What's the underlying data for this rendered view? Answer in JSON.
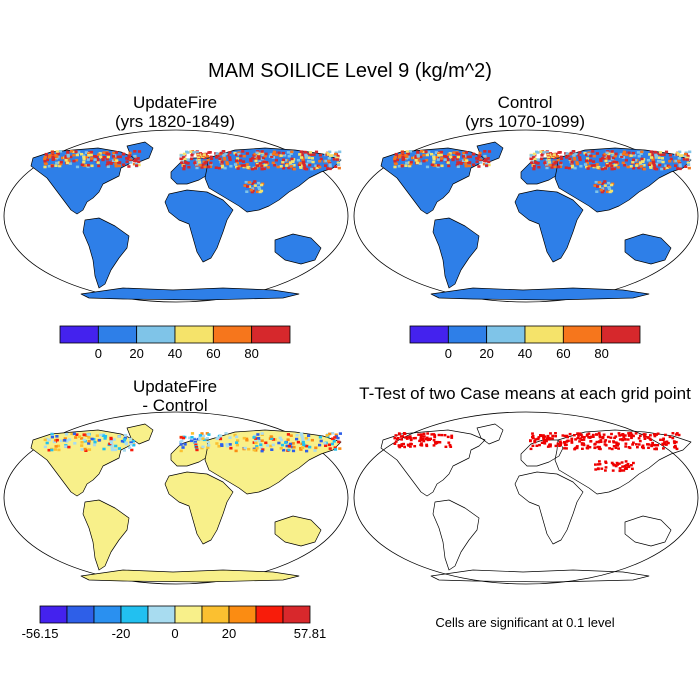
{
  "figure": {
    "title": "MAM SOILICE Level 9 (kg/m^2)"
  },
  "panels": [
    {
      "title_line1": "UpdateFire",
      "title_line2": "(yrs 1820-1849)"
    },
    {
      "title_line1": "Control",
      "title_line2": "(yrs 1070-1099)"
    },
    {
      "title_line1": "UpdateFire",
      "title_line2": "- Control"
    },
    {
      "title_line1": "T-Test of two Case means at each grid point"
    }
  ],
  "footnote": "Cells are significant at 0.1 level",
  "colorbars": {
    "absolute": {
      "colors": [
        "#4422ee",
        "#2e7fe8",
        "#7fc4e8",
        "#f5e36a",
        "#f6761c",
        "#d6282c"
      ],
      "tick_labels": [
        "0",
        "20",
        "40",
        "60",
        "80"
      ]
    },
    "difference": {
      "colors": [
        "#4422ee",
        "#2e5fe8",
        "#2a90f0",
        "#22c0f0",
        "#a8dcf0",
        "#f8f08a",
        "#fbc030",
        "#fb8c12",
        "#f81c0a",
        "#d8282c"
      ],
      "tick_labels": [
        "-56.15",
        "-20",
        "0",
        "20",
        "57.81"
      ]
    }
  },
  "colors": {
    "land_absolute": "#2e7fe8",
    "land_difference": "#f8f08a",
    "high_ice_red": "#d6282c",
    "high_ice_orange": "#f6761c",
    "high_ice_yellow": "#f5e36a",
    "light_blue": "#7fc4e8",
    "significant": "#ee0000"
  }
}
